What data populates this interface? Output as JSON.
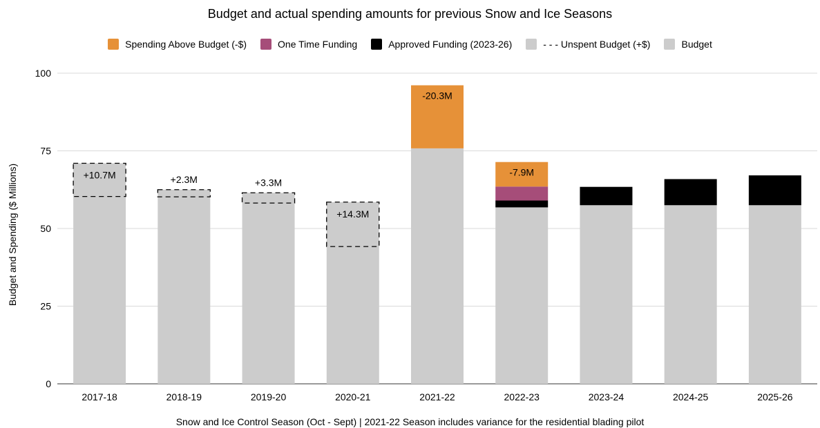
{
  "chart_data": {
    "type": "bar",
    "stacked": true,
    "title": "Budget and actual spending amounts for previous Snow and Ice Seasons",
    "xlabel": "Snow and Ice Control Season (Oct - Sept)  | 2021-22 Season includes variance for the residential blading pilot",
    "ylabel": "Budget and Spending ($ Millions)",
    "ylim": [
      0,
      100
    ],
    "yticks": [
      0,
      25,
      50,
      75,
      100
    ],
    "grid": true,
    "legend_position": "top",
    "categories": [
      "2017-18",
      "2018-19",
      "2019-20",
      "2020-21",
      "2021-22",
      "2022-23",
      "2023-24",
      "2024-25",
      "2025-26"
    ],
    "series": [
      {
        "name": "Budget",
        "color": "#cccccc",
        "values": [
          71,
          62.5,
          61.5,
          58.5,
          75.8,
          56.8,
          57.5,
          57.5,
          57.5
        ]
      },
      {
        "name": "Approved Funding (2023-26)",
        "color": "#000000",
        "values": [
          0,
          0,
          0,
          0,
          0,
          2.2,
          5.9,
          8.4,
          9.6
        ]
      },
      {
        "name": "One Time Funding",
        "color": "#a64d79",
        "values": [
          0,
          0,
          0,
          0,
          0,
          4.5,
          0,
          0,
          0
        ]
      },
      {
        "name": "Spending Above Budget (-$)",
        "color": "#e69138",
        "values": [
          0,
          0,
          0,
          0,
          20.3,
          7.9,
          0,
          0,
          0
        ]
      }
    ],
    "unspent_budget": {
      "name": "- - - Unspent Budget (+$)",
      "color": "#cccccc",
      "values": [
        10.7,
        2.3,
        3.3,
        14.3,
        0,
        0,
        0,
        0,
        0
      ],
      "labels": [
        "+10.7M",
        "+2.3M",
        "+3.3M",
        "+14.3M",
        "",
        "",
        "",
        "",
        ""
      ]
    },
    "overspend_labels": [
      "",
      "",
      "",
      "",
      "-20.3M",
      "-7.9M",
      "",
      "",
      ""
    ],
    "legend": [
      {
        "label": "Spending Above Budget (-$)",
        "color": "#e69138"
      },
      {
        "label": "One Time Funding",
        "color": "#a64d79"
      },
      {
        "label": "Approved Funding (2023-26)",
        "color": "#000000"
      },
      {
        "label": "- - - Unspent Budget (+$)",
        "color": "#cccccc"
      },
      {
        "label": "Budget",
        "color": "#cccccc"
      }
    ]
  }
}
